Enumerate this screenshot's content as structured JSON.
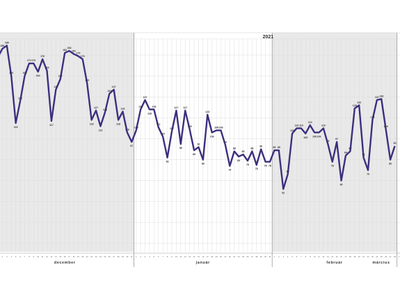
{
  "chart_data": {
    "type": "line",
    "title": "",
    "xlabel": "",
    "ylabel": "",
    "year_label": "2021",
    "line_color": "#3b2f7e",
    "shaded_fill": "#e9e9e9",
    "grid": true,
    "ylim": [
      0,
      200
    ],
    "months": [
      {
        "name": "december",
        "day_count": 31
      },
      {
        "name": "január",
        "day_count": 31
      },
      {
        "name": "február",
        "day_count": 28
      },
      {
        "name": "március",
        "day_count": 11
      }
    ],
    "values": [
      178,
      186,
      189,
      160,
      115,
      136,
      160,
      172,
      172,
      164,
      176,
      165,
      117,
      147,
      157,
      182,
      184,
      181,
      179,
      176,
      153,
      118,
      127,
      112,
      125,
      143,
      147,
      118,
      126,
      106,
      97,
      108,
      128,
      137,
      128,
      128,
      111,
      102,
      82,
      107,
      127,
      95,
      127,
      109,
      89,
      92,
      80,
      123,
      106,
      108,
      108,
      94,
      74,
      88,
      83,
      85,
      79,
      88,
      75,
      90,
      78,
      78,
      89,
      89,
      52,
      66,
      105,
      110,
      110,
      105,
      113,
      106,
      106,
      110,
      95,
      78,
      97,
      60,
      84,
      88,
      129,
      132,
      82,
      70,
      118,
      137,
      138,
      109,
      80,
      93
    ],
    "labels": [
      "178",
      "186",
      "189",
      "160",
      "115",
      "136",
      "160",
      "172",
      "172",
      "164",
      "176",
      "165",
      "117",
      "147",
      "157",
      "182",
      "184",
      "181",
      "179",
      "176",
      "153",
      "118",
      "127",
      "112",
      "125",
      "143",
      "147",
      "118",
      "126",
      "106",
      "97",
      "108",
      "128",
      "137",
      "128",
      "128",
      "111",
      "102",
      "82",
      "107",
      "127",
      "95",
      "127",
      "109",
      "89",
      "92",
      "80",
      "123",
      "106",
      "108",
      "108",
      "94",
      "74",
      "88",
      "83",
      "85",
      "79",
      "88",
      "75",
      "90",
      "78",
      "78",
      "89",
      "89",
      "52",
      "66",
      "105",
      "110",
      "110",
      "105",
      "113",
      "106",
      "106",
      "110",
      "95",
      "78",
      "97",
      "60",
      "84",
      "88",
      "129",
      "132",
      "82",
      "70",
      "118",
      "137",
      "138",
      "109",
      "80",
      "93"
    ]
  }
}
